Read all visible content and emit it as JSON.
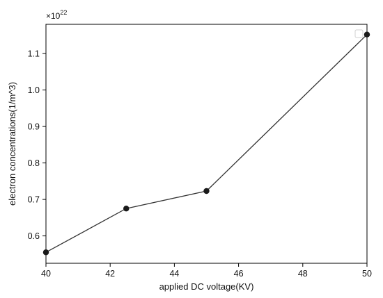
{
  "chart_data": {
    "type": "line",
    "title": "",
    "xlabel": "applied DC voltage(KV)",
    "ylabel": "electron concentrations(1/m^3)",
    "y_offset_base": "×10",
    "y_offset_exponent": "22",
    "xlim": [
      40,
      50
    ],
    "ylim": [
      0.525,
      1.18
    ],
    "x_ticks": [
      40,
      42,
      44,
      46,
      48,
      50
    ],
    "x_tick_labels": [
      "40",
      "42",
      "44",
      "46",
      "48",
      "50"
    ],
    "y_ticks": [
      0.6,
      0.7,
      0.8,
      0.9,
      1.0,
      1.1
    ],
    "y_tick_labels": [
      "0.6",
      "0.7",
      "0.8",
      "0.9",
      "1.0",
      "1.1"
    ],
    "grid": false,
    "legend": {
      "placement": "top-right",
      "entries": []
    },
    "series": [
      {
        "color": "#333333",
        "marker": "circle",
        "x": [
          40,
          42.5,
          45,
          50
        ],
        "y": [
          0.555,
          0.675,
          0.723,
          1.152
        ]
      }
    ]
  }
}
